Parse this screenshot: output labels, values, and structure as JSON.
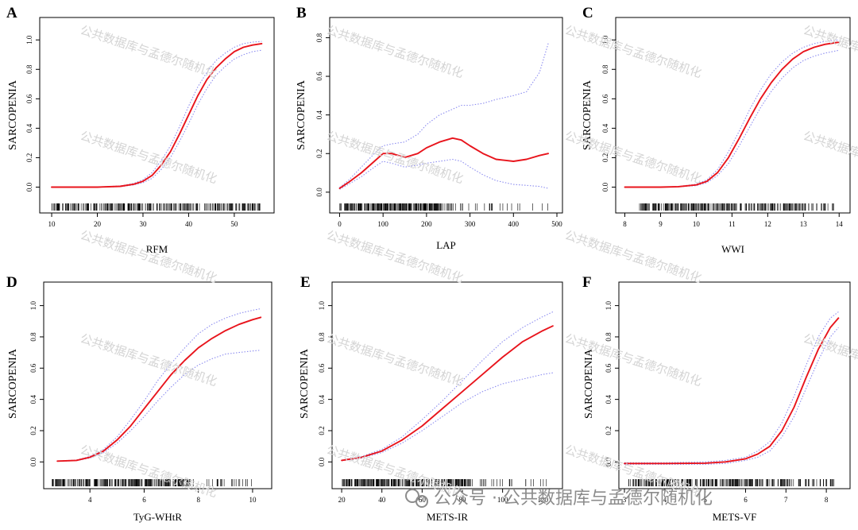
{
  "figure": {
    "watermark": "公共数据库与孟德尔随机化",
    "footer_watermark": "公众号 · 公共数据库与孟德尔随机化"
  },
  "colors": {
    "fit": "#e8141c",
    "ci": "#8d8df0",
    "axis": "#000000"
  },
  "chart_data": [
    {
      "letter": "A",
      "type": "line",
      "xlabel": "RFM",
      "ylabel": "SARCOPENIA",
      "xlim": [
        8.6,
        57.5
      ],
      "ylim": [
        -0.1,
        1.12
      ],
      "xticks": [
        10,
        20,
        30,
        40,
        50
      ],
      "yticks": [
        0.0,
        0.2,
        0.4,
        0.6,
        0.8,
        1.0
      ],
      "yticklabels": [
        "0.0",
        "0.2",
        "0.4",
        "0.6",
        "0.8",
        "1.0"
      ],
      "rug": {
        "dense": [
          10,
          53
        ],
        "sparse": [
          53,
          56
        ]
      },
      "series": [
        {
          "role": "fit",
          "x": [
            10,
            15,
            20,
            25,
            28,
            30,
            32,
            34,
            36,
            38,
            40,
            42,
            44,
            46,
            48,
            50,
            52,
            54,
            56
          ],
          "y": [
            0.0,
            0.0,
            0.0,
            0.005,
            0.02,
            0.04,
            0.08,
            0.15,
            0.24,
            0.36,
            0.49,
            0.62,
            0.73,
            0.81,
            0.87,
            0.92,
            0.95,
            0.965,
            0.975
          ]
        },
        {
          "role": "ci_upper",
          "x": [
            10,
            15,
            20,
            25,
            28,
            30,
            32,
            34,
            36,
            38,
            40,
            42,
            44,
            46,
            48,
            50,
            52,
            54,
            56
          ],
          "y": [
            0.0,
            0.0,
            0.0,
            0.008,
            0.025,
            0.05,
            0.1,
            0.18,
            0.28,
            0.41,
            0.55,
            0.68,
            0.78,
            0.86,
            0.91,
            0.95,
            0.975,
            0.985,
            0.99
          ]
        },
        {
          "role": "ci_lower",
          "x": [
            10,
            15,
            20,
            25,
            28,
            30,
            32,
            34,
            36,
            38,
            40,
            42,
            44,
            46,
            48,
            50,
            52,
            54,
            56
          ],
          "y": [
            0.0,
            0.0,
            0.0,
            0.003,
            0.015,
            0.03,
            0.06,
            0.12,
            0.2,
            0.31,
            0.43,
            0.56,
            0.67,
            0.76,
            0.82,
            0.87,
            0.9,
            0.92,
            0.93
          ]
        }
      ]
    },
    {
      "letter": "B",
      "type": "line",
      "xlabel": "LAP",
      "ylabel": "SARCOPENIA",
      "xlim": [
        -10,
        500
      ],
      "ylim": [
        -0.05,
        0.88
      ],
      "xticks": [
        0,
        100,
        200,
        300,
        400,
        500
      ],
      "yticks": [
        0.0,
        0.2,
        0.4,
        0.6,
        0.8
      ],
      "yticklabels": [
        "0.0",
        "0.2",
        "0.4",
        "0.6",
        "0.8"
      ],
      "rug": {
        "dense": [
          0,
          270
        ],
        "sparse": [
          270,
          480
        ]
      },
      "series": [
        {
          "role": "fit",
          "x": [
            0,
            20,
            50,
            80,
            100,
            120,
            150,
            180,
            200,
            230,
            260,
            280,
            300,
            330,
            360,
            400,
            430,
            460,
            480
          ],
          "y": [
            0.02,
            0.05,
            0.1,
            0.16,
            0.2,
            0.2,
            0.18,
            0.2,
            0.23,
            0.26,
            0.28,
            0.27,
            0.24,
            0.2,
            0.17,
            0.16,
            0.17,
            0.19,
            0.2
          ]
        },
        {
          "role": "ci_upper",
          "x": [
            0,
            20,
            50,
            80,
            100,
            120,
            150,
            180,
            200,
            230,
            260,
            280,
            300,
            330,
            360,
            400,
            430,
            460,
            480
          ],
          "y": [
            0.025,
            0.06,
            0.13,
            0.2,
            0.24,
            0.25,
            0.26,
            0.3,
            0.35,
            0.4,
            0.43,
            0.45,
            0.45,
            0.46,
            0.48,
            0.5,
            0.52,
            0.62,
            0.77
          ]
        },
        {
          "role": "ci_lower",
          "x": [
            0,
            20,
            50,
            80,
            100,
            120,
            150,
            180,
            200,
            230,
            260,
            280,
            300,
            330,
            360,
            400,
            430,
            460,
            480
          ],
          "y": [
            0.015,
            0.04,
            0.08,
            0.13,
            0.16,
            0.15,
            0.13,
            0.14,
            0.15,
            0.16,
            0.17,
            0.16,
            0.13,
            0.09,
            0.06,
            0.04,
            0.035,
            0.03,
            0.02
          ]
        }
      ]
    },
    {
      "letter": "C",
      "type": "line",
      "xlabel": "WWI",
      "ylabel": "SARCOPENIA",
      "xlim": [
        7.9,
        14.15
      ],
      "ylim": [
        -0.1,
        1.12
      ],
      "xticks": [
        8,
        9,
        10,
        11,
        12,
        13,
        14
      ],
      "yticks": [
        0.0,
        0.2,
        0.4,
        0.6,
        0.8,
        1.0
      ],
      "yticklabels": [
        "0.0",
        "0.2",
        "0.4",
        "0.6",
        "0.8",
        "1.0"
      ],
      "rug": {
        "dense": [
          8.4,
          13.0
        ],
        "sparse": [
          13.0,
          13.9
        ]
      },
      "series": [
        {
          "role": "fit",
          "x": [
            8,
            9,
            9.5,
            10,
            10.3,
            10.6,
            10.9,
            11.2,
            11.5,
            11.8,
            12.1,
            12.4,
            12.7,
            13,
            13.3,
            13.6,
            14
          ],
          "y": [
            0.0,
            0.0,
            0.003,
            0.015,
            0.04,
            0.1,
            0.2,
            0.33,
            0.47,
            0.6,
            0.71,
            0.8,
            0.87,
            0.92,
            0.95,
            0.97,
            0.985
          ]
        },
        {
          "role": "ci_upper",
          "x": [
            8,
            9,
            9.5,
            10,
            10.3,
            10.6,
            10.9,
            11.2,
            11.5,
            11.8,
            12.1,
            12.4,
            12.7,
            13,
            13.3,
            13.6,
            14
          ],
          "y": [
            0.0,
            0.0,
            0.004,
            0.02,
            0.05,
            0.12,
            0.24,
            0.38,
            0.53,
            0.66,
            0.77,
            0.85,
            0.91,
            0.95,
            0.975,
            0.99,
            1.0
          ]
        },
        {
          "role": "ci_lower",
          "x": [
            8,
            9,
            9.5,
            10,
            10.3,
            10.6,
            10.9,
            11.2,
            11.5,
            11.8,
            12.1,
            12.4,
            12.7,
            13,
            13.3,
            13.6,
            14
          ],
          "y": [
            0.0,
            0.0,
            0.002,
            0.01,
            0.03,
            0.08,
            0.16,
            0.28,
            0.41,
            0.54,
            0.65,
            0.74,
            0.81,
            0.86,
            0.89,
            0.91,
            0.93
          ]
        }
      ]
    },
    {
      "letter": "D",
      "type": "line",
      "xlabel": "TyG-WHtR",
      "ylabel": "SARCOPENIA",
      "xlim": [
        2.5,
        10.5
      ],
      "ylim": [
        -0.1,
        1.12
      ],
      "xticks": [
        4,
        6,
        8,
        10
      ],
      "yticks": [
        0.0,
        0.2,
        0.4,
        0.6,
        0.8,
        1.0
      ],
      "yticklabels": [
        "0.0",
        "0.2",
        "0.4",
        "0.6",
        "0.8",
        "1.0"
      ],
      "rug": {
        "dense": [
          2.6,
          7.8
        ],
        "sparse": [
          7.8,
          10.0
        ]
      },
      "series": [
        {
          "role": "fit",
          "x": [
            2.8,
            3.5,
            4,
            4.5,
            5,
            5.5,
            6,
            6.5,
            7,
            7.5,
            8,
            8.5,
            9,
            9.5,
            10,
            10.3
          ],
          "y": [
            0.005,
            0.01,
            0.03,
            0.07,
            0.14,
            0.23,
            0.34,
            0.45,
            0.56,
            0.65,
            0.73,
            0.79,
            0.84,
            0.88,
            0.91,
            0.925
          ]
        },
        {
          "role": "ci_upper",
          "x": [
            2.8,
            3.5,
            4,
            4.5,
            5,
            5.5,
            6,
            6.5,
            7,
            7.5,
            8,
            8.5,
            9,
            9.5,
            10,
            10.3
          ],
          "y": [
            0.006,
            0.012,
            0.035,
            0.08,
            0.16,
            0.27,
            0.39,
            0.52,
            0.63,
            0.73,
            0.82,
            0.88,
            0.92,
            0.95,
            0.97,
            0.98
          ]
        },
        {
          "role": "ci_lower",
          "x": [
            2.8,
            3.5,
            4,
            4.5,
            5,
            5.5,
            6,
            6.5,
            7,
            7.5,
            8,
            8.5,
            9,
            9.5,
            10,
            10.3
          ],
          "y": [
            0.004,
            0.008,
            0.025,
            0.06,
            0.12,
            0.2,
            0.29,
            0.39,
            0.48,
            0.56,
            0.62,
            0.66,
            0.69,
            0.7,
            0.71,
            0.715
          ]
        }
      ]
    },
    {
      "letter": "E",
      "type": "line",
      "xlabel": "METS-IR",
      "ylabel": "SARCOPENIA",
      "xlim": [
        18,
        127
      ],
      "ylim": [
        -0.1,
        1.12
      ],
      "xticks": [
        20,
        40,
        60,
        80,
        100,
        120
      ],
      "yticks": [
        0.0,
        0.2,
        0.4,
        0.6,
        0.8,
        1.0
      ],
      "yticklabels": [
        "0.0",
        "0.2",
        "0.4",
        "0.6",
        "0.8",
        "1.0"
      ],
      "rug": {
        "dense": [
          20,
          85
        ],
        "sparse": [
          85,
          122
        ]
      },
      "series": [
        {
          "role": "fit",
          "x": [
            20,
            30,
            40,
            50,
            60,
            70,
            80,
            90,
            100,
            110,
            120,
            125
          ],
          "y": [
            0.01,
            0.03,
            0.07,
            0.14,
            0.23,
            0.34,
            0.45,
            0.56,
            0.67,
            0.77,
            0.84,
            0.87
          ]
        },
        {
          "role": "ci_upper",
          "x": [
            20,
            30,
            40,
            50,
            60,
            70,
            80,
            90,
            100,
            110,
            120,
            125
          ],
          "y": [
            0.012,
            0.035,
            0.08,
            0.16,
            0.27,
            0.39,
            0.52,
            0.65,
            0.77,
            0.86,
            0.93,
            0.96
          ]
        },
        {
          "role": "ci_lower",
          "x": [
            20,
            30,
            40,
            50,
            60,
            70,
            80,
            90,
            100,
            110,
            120,
            125
          ],
          "y": [
            0.008,
            0.025,
            0.06,
            0.12,
            0.2,
            0.29,
            0.38,
            0.45,
            0.5,
            0.53,
            0.56,
            0.57
          ]
        }
      ]
    },
    {
      "letter": "F",
      "type": "line",
      "xlabel": "METS-VF",
      "ylabel": "SARCOPENIA",
      "xlim": [
        3.0,
        8.45
      ],
      "ylim": [
        -0.1,
        1.12
      ],
      "xticks": [
        3,
        4,
        5,
        6,
        7,
        8
      ],
      "yticks": [
        0.0,
        0.2,
        0.4,
        0.6,
        0.8,
        1.0
      ],
      "yticklabels": [
        "0.0",
        "0.2",
        "0.4",
        "0.6",
        "0.8",
        "1.0"
      ],
      "rug": {
        "dense": [
          3.1,
          7.6
        ],
        "sparse": [
          7.6,
          8.2
        ]
      },
      "series": [
        {
          "role": "fit",
          "x": [
            3.0,
            4,
            5,
            5.5,
            6,
            6.3,
            6.6,
            6.9,
            7.2,
            7.5,
            7.8,
            8.1,
            8.3
          ],
          "y": [
            -0.01,
            -0.01,
            -0.008,
            0.0,
            0.02,
            0.05,
            0.1,
            0.2,
            0.35,
            0.54,
            0.72,
            0.86,
            0.92
          ]
        },
        {
          "role": "ci_upper",
          "x": [
            3.0,
            4,
            5,
            5.5,
            6,
            6.3,
            6.6,
            6.9,
            7.2,
            7.5,
            7.8,
            8.1,
            8.3
          ],
          "y": [
            -0.005,
            -0.005,
            0.0,
            0.01,
            0.03,
            0.07,
            0.13,
            0.25,
            0.42,
            0.62,
            0.8,
            0.92,
            0.96
          ]
        },
        {
          "role": "ci_lower",
          "x": [
            3.0,
            4,
            5,
            5.5,
            6,
            6.3,
            6.6,
            6.9,
            7.2,
            7.5,
            7.8,
            8.1,
            8.3
          ],
          "y": [
            -0.015,
            -0.015,
            -0.015,
            -0.01,
            0.01,
            0.03,
            0.07,
            0.16,
            0.29,
            0.47,
            0.65,
            0.8,
            0.86
          ]
        }
      ]
    }
  ]
}
